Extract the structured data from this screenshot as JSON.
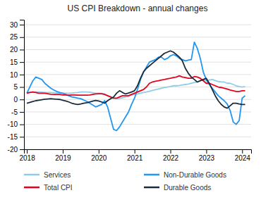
{
  "chart_data": {
    "type": "line",
    "title": "US CPI Breakdown - annual changes",
    "x": [
      2018.0,
      2018.083,
      2018.167,
      2018.25,
      2018.333,
      2018.417,
      2018.5,
      2018.583,
      2018.667,
      2018.75,
      2018.833,
      2018.917,
      2019.0,
      2019.083,
      2019.167,
      2019.25,
      2019.333,
      2019.417,
      2019.5,
      2019.583,
      2019.667,
      2019.75,
      2019.833,
      2019.917,
      2020.0,
      2020.083,
      2020.167,
      2020.25,
      2020.333,
      2020.417,
      2020.5,
      2020.583,
      2020.667,
      2020.75,
      2020.833,
      2020.917,
      2021.0,
      2021.083,
      2021.167,
      2021.25,
      2021.333,
      2021.417,
      2021.5,
      2021.583,
      2021.667,
      2021.75,
      2021.833,
      2021.917,
      2022.0,
      2022.083,
      2022.167,
      2022.25,
      2022.333,
      2022.417,
      2022.5,
      2022.583,
      2022.667,
      2022.75,
      2022.833,
      2022.917,
      2023.0,
      2023.083,
      2023.167,
      2023.25,
      2023.333,
      2023.417,
      2023.5,
      2023.583,
      2023.667,
      2023.75,
      2023.833,
      2023.917,
      2024.0,
      2024.083
    ],
    "series": [
      {
        "name": "Services",
        "color": "#90cce8",
        "values": [
          2.8,
          2.9,
          3.0,
          3.0,
          3.0,
          2.9,
          2.8,
          2.8,
          2.8,
          2.7,
          2.6,
          2.5,
          2.5,
          2.5,
          2.5,
          2.5,
          2.7,
          2.8,
          3.0,
          3.0,
          3.0,
          2.9,
          2.7,
          2.5,
          2.5,
          2.4,
          2.2,
          1.5,
          1.0,
          0.5,
          0.3,
          0.4,
          0.7,
          1.0,
          1.3,
          1.8,
          2.0,
          2.2,
          2.5,
          2.8,
          3.0,
          3.3,
          3.6,
          3.9,
          4.2,
          4.5,
          4.8,
          5.0,
          5.2,
          5.5,
          5.5,
          5.6,
          5.8,
          6.0,
          6.2,
          6.5,
          6.8,
          7.0,
          7.5,
          8.0,
          7.5,
          7.8,
          8.0,
          7.6,
          7.2,
          7.0,
          7.0,
          6.5,
          6.5,
          6.0,
          5.5,
          5.2,
          5.0,
          5.2
        ]
      },
      {
        "name": "Non-Durable Goods",
        "color": "#2196f3",
        "values": [
          2.5,
          5.0,
          7.5,
          9.0,
          8.5,
          8.0,
          6.5,
          5.5,
          4.5,
          3.8,
          3.2,
          2.8,
          2.5,
          2.0,
          1.5,
          1.0,
          0.8,
          0.5,
          0.3,
          -0.2,
          -0.8,
          -1.5,
          -2.2,
          -3.0,
          -2.5,
          -2.0,
          -0.5,
          -3.0,
          -7.5,
          -12.0,
          -12.5,
          -11.0,
          -9.0,
          -7.0,
          -5.0,
          -2.0,
          0.5,
          4.0,
          8.0,
          11.0,
          13.0,
          15.0,
          15.5,
          16.0,
          17.0,
          17.0,
          16.0,
          16.5,
          17.5,
          18.0,
          17.5,
          16.5,
          16.0,
          15.5,
          15.8,
          16.0,
          23.0,
          20.5,
          16.5,
          11.0,
          8.0,
          6.0,
          4.5,
          3.0,
          1.5,
          0.5,
          -0.5,
          -1.8,
          -4.5,
          -9.0,
          -10.0,
          -8.5,
          0.5,
          1.5
        ]
      },
      {
        "name": "Total CPI",
        "color": "#e8001c",
        "values": [
          2.5,
          2.8,
          3.0,
          2.8,
          2.5,
          2.5,
          2.5,
          2.3,
          2.1,
          2.0,
          2.0,
          2.0,
          1.8,
          1.8,
          1.7,
          1.8,
          1.8,
          1.7,
          1.7,
          1.7,
          1.7,
          1.8,
          2.0,
          2.2,
          2.3,
          2.3,
          2.0,
          1.5,
          1.0,
          0.5,
          0.5,
          1.0,
          1.5,
          1.5,
          1.5,
          2.0,
          2.5,
          3.0,
          3.5,
          4.0,
          5.0,
          6.5,
          7.0,
          7.3,
          7.5,
          7.8,
          8.0,
          8.3,
          8.5,
          8.8,
          9.0,
          9.5,
          9.0,
          8.8,
          8.5,
          8.5,
          9.2,
          9.0,
          8.5,
          7.5,
          6.5,
          6.5,
          6.0,
          5.5,
          5.0,
          4.8,
          4.5,
          4.2,
          3.8,
          3.5,
          3.2,
          3.2,
          3.5,
          3.5
        ]
      },
      {
        "name": "Durable Goods",
        "color": "#1c2b3a",
        "values": [
          -1.5,
          -1.2,
          -0.8,
          -0.5,
          -0.3,
          -0.1,
          0.1,
          0.2,
          0.3,
          0.2,
          0.1,
          0.0,
          -0.3,
          -0.6,
          -1.0,
          -1.5,
          -1.8,
          -2.0,
          -1.8,
          -1.5,
          -1.3,
          -1.0,
          -0.7,
          -0.4,
          -0.6,
          -1.0,
          -1.5,
          -0.5,
          0.3,
          1.0,
          2.5,
          3.5,
          2.8,
          2.2,
          2.6,
          3.0,
          3.5,
          5.5,
          8.5,
          11.0,
          12.5,
          13.5,
          14.5,
          15.5,
          16.5,
          17.5,
          18.5,
          19.0,
          19.5,
          19.0,
          18.0,
          17.0,
          15.5,
          12.5,
          10.5,
          9.0,
          8.0,
          7.0,
          7.5,
          8.0,
          8.5,
          6.5,
          4.0,
          1.5,
          -0.5,
          -2.0,
          -3.0,
          -3.5,
          -2.5,
          -1.5,
          -1.5,
          -1.8,
          -2.0,
          -2.0
        ]
      }
    ],
    "xlim": [
      2017.92,
      2024.25
    ],
    "ylim": [
      -20,
      32
    ],
    "xticks": [
      2018,
      2019,
      2020,
      2021,
      2022,
      2023,
      2024
    ],
    "yticks": [
      -20,
      -15,
      -10,
      -5,
      0,
      5,
      10,
      15,
      20,
      25,
      30
    ],
    "grid": true,
    "legend": "bottom"
  }
}
